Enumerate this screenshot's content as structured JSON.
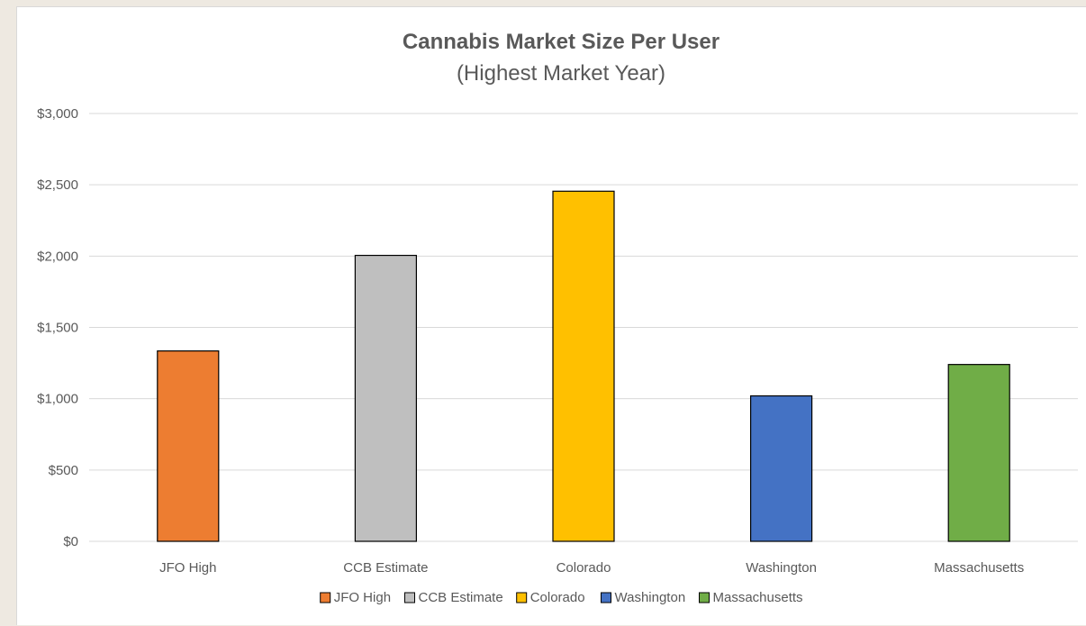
{
  "chart_data": {
    "type": "bar",
    "title": "Cannabis Market Size Per User",
    "subtitle": "(Highest Market Year)",
    "xlabel": "",
    "ylabel": "",
    "categories": [
      "JFO High",
      "CCB Estimate",
      "Colorado",
      "Washington",
      "Massachusetts"
    ],
    "values": [
      1335,
      2005,
      2455,
      1020,
      1240
    ],
    "colors": [
      "#ed7d31",
      "#bfbfbf",
      "#ffc000",
      "#4472c4",
      "#70ad47"
    ],
    "ylim": [
      0,
      3000
    ],
    "yticks": [
      0,
      500,
      1000,
      1500,
      2000,
      2500,
      3000
    ],
    "ytick_labels": [
      "$0",
      "$500",
      "$1,000",
      "$1,500",
      "$2,000",
      "$2,500",
      "$3,000"
    ],
    "grid": true,
    "legend": {
      "placement": "bottom",
      "entries": [
        "JFO High",
        "CCB Estimate",
        "Colorado",
        "Washington",
        "Massachusetts"
      ]
    }
  }
}
